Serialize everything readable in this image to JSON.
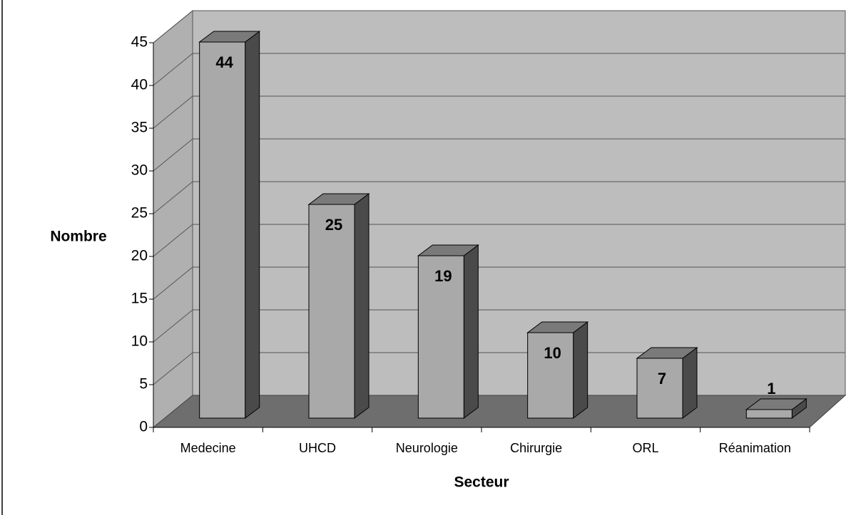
{
  "chart_data": {
    "type": "bar3d",
    "categories": [
      "Medecine",
      "UHCD",
      "Neurologie",
      "Chirurgie",
      "ORL",
      "Réanimation"
    ],
    "values": [
      44,
      25,
      19,
      10,
      7,
      1
    ],
    "ylim": [
      0,
      45
    ],
    "yticks": [
      0,
      5,
      10,
      15,
      20,
      25,
      30,
      35,
      40,
      45
    ],
    "x_label": "Secteur",
    "y_label": "Nombre",
    "grid": true,
    "color": "#a9a9a9"
  }
}
